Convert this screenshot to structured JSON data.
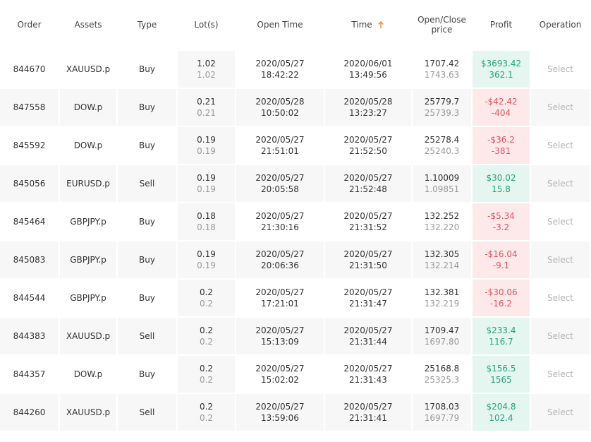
{
  "header": [
    "Order",
    "Assets",
    "Type",
    "Lot(s)",
    "Open Time",
    "Time",
    "Open/Close price",
    "Profit",
    "Operation"
  ],
  "rows": [
    {
      "order": "844670",
      "asset": "XAUUSD.p",
      "type": "Buy",
      "lots": [
        "1.02",
        "1.02"
      ],
      "open_time": "2020/05/27 18:42:22",
      "time": "2020/06/01 13:49:56",
      "price": [
        "1707.42",
        "1743.63"
      ],
      "profit": [
        "$3693.42",
        "362.1"
      ],
      "operation": "Select"
    },
    {
      "order": "847558",
      "asset": "DOW.p",
      "type": "Buy",
      "lots": [
        "0.21",
        "0.21"
      ],
      "open_time": "2020/05/28 10:50:02",
      "time": "2020/05/28 13:23:27",
      "price": [
        "25779.7",
        "25739.3"
      ],
      "profit": [
        "-$42.42",
        "-404"
      ],
      "operation": "Select"
    },
    {
      "order": "845592",
      "asset": "DOW.p",
      "type": "Buy",
      "lots": [
        "0.19",
        "0.19"
      ],
      "open_time": "2020/05/27 21:51:01",
      "time": "2020/05/27 21:52:50",
      "price": [
        "25278.4",
        "25240.3"
      ],
      "profit": [
        "-$36.2",
        "-381"
      ],
      "operation": "Select"
    },
    {
      "order": "845056",
      "asset": "EURUSD.p",
      "type": "Sell",
      "lots": [
        "0.19",
        "0.19"
      ],
      "open_time": "2020/05/27 20:05:58",
      "time": "2020/05/27 21:52:48",
      "price": [
        "1.10009",
        "1.09851"
      ],
      "profit": [
        "$30.02",
        "15.8"
      ],
      "operation": "Select"
    },
    {
      "order": "845464",
      "asset": "GBPJPY.p",
      "type": "Buy",
      "lots": [
        "0.18",
        "0.18"
      ],
      "open_time": "2020/05/27 21:30:16",
      "time": "2020/05/27 21:31:52",
      "price": [
        "132.252",
        "132.220"
      ],
      "profit": [
        "-$5.34",
        "-3.2"
      ],
      "operation": "Select"
    },
    {
      "order": "845083",
      "asset": "GBPJPY.p",
      "type": "Buy",
      "lots": [
        "0.19",
        "0.19"
      ],
      "open_time": "2020/05/27 20:06:36",
      "time": "2020/05/27 21:31:50",
      "price": [
        "132.305",
        "132.214"
      ],
      "profit": [
        "-$16.04",
        "-9.1"
      ],
      "operation": "Select"
    },
    {
      "order": "844544",
      "asset": "GBPJPY.p",
      "type": "Buy",
      "lots": [
        "0.2",
        "0.2"
      ],
      "open_time": "2020/05/27 17:21:01",
      "time": "2020/05/27 21:31:47",
      "price": [
        "132.381",
        "132.219"
      ],
      "profit": [
        "-$30.06",
        "-16.2"
      ],
      "operation": "Select"
    },
    {
      "order": "844383",
      "asset": "XAUUSD.p",
      "type": "Sell",
      "lots": [
        "0.2",
        "0.2"
      ],
      "open_time": "2020/05/27 15:13:09",
      "time": "2020/05/27 21:31:44",
      "price": [
        "1709.47",
        "1697.80"
      ],
      "profit": [
        "$233.4",
        "116.7"
      ],
      "operation": "Select"
    },
    {
      "order": "844357",
      "asset": "DOW.p",
      "type": "Buy",
      "lots": [
        "0.2",
        "0.2"
      ],
      "open_time": "2020/05/27 15:02:02",
      "time": "2020/05/27 21:31:43",
      "price": [
        "25168.8",
        "25325.3"
      ],
      "profit": [
        "$156.5",
        "1565"
      ],
      "operation": "Select"
    },
    {
      "order": "844260",
      "asset": "XAUUSD.p",
      "type": "Sell",
      "lots": [
        "0.2",
        "0.2"
      ],
      "open_time": "2020/05/27 13:59:06",
      "time": "2020/05/27 21:31:41",
      "price": [
        "1708.03",
        "1697.79"
      ],
      "profit": [
        "$204.8",
        "102.4"
      ],
      "operation": "Select"
    }
  ]
}
